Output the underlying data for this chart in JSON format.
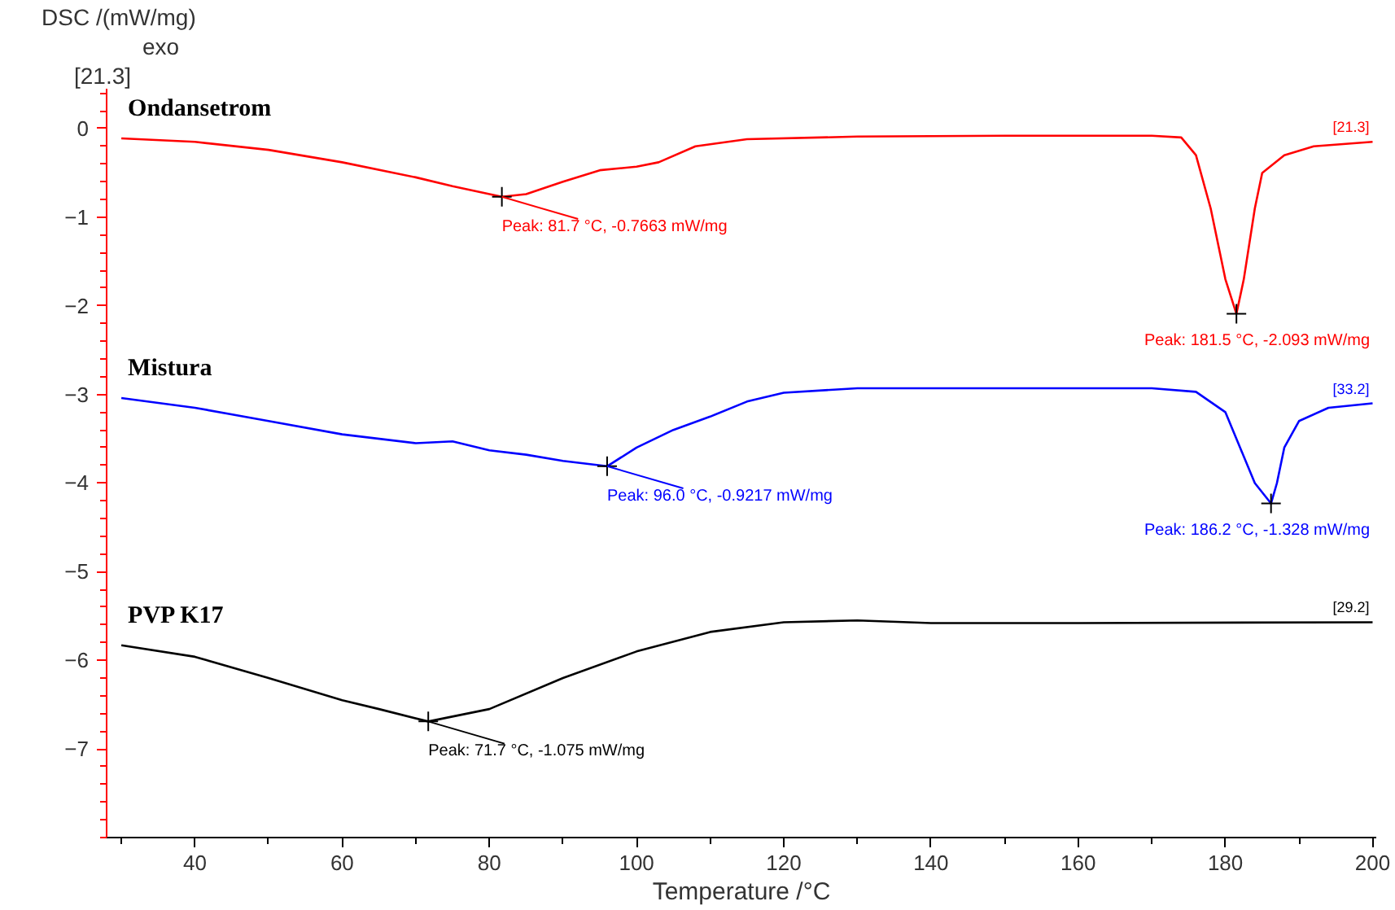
{
  "chart_data": {
    "type": "line",
    "xlabel": "Temperature /°C",
    "ylabel": "DSC /(mW/mg)",
    "xlim": [
      28,
      200.5
    ],
    "ylim": [
      -8,
      0.45
    ],
    "xticks": [
      40,
      60,
      80,
      100,
      120,
      140,
      160,
      180,
      200
    ],
    "yticks": [
      0,
      -1,
      -2,
      -3,
      -4,
      -5,
      -6,
      -7
    ],
    "grid": false,
    "marker": "none",
    "line_style": "solid",
    "series": [
      {
        "name": "Ondansetrom",
        "color": "#ff0000",
        "x": [
          30,
          40,
          50,
          60,
          70,
          75,
          81.7,
          85,
          90,
          95,
          100,
          103,
          108,
          115,
          130,
          150,
          170,
          174,
          176,
          178,
          180,
          181.5,
          182.5,
          184,
          185,
          188,
          192,
          200
        ],
        "values": [
          -0.11,
          -0.15,
          -0.24,
          -0.38,
          -0.55,
          -0.65,
          -0.77,
          -0.74,
          -0.6,
          -0.47,
          -0.43,
          -0.38,
          -0.2,
          -0.12,
          -0.09,
          -0.08,
          -0.08,
          -0.1,
          -0.3,
          -0.9,
          -1.7,
          -2.09,
          -1.7,
          -0.9,
          -0.5,
          -0.3,
          -0.2,
          -0.15
        ]
      },
      {
        "name": "Mistura",
        "color": "#0000ff",
        "x": [
          30,
          40,
          50,
          60,
          70,
          75,
          80,
          85,
          90,
          96,
          100,
          105,
          110,
          115,
          120,
          130,
          150,
          170,
          176,
          180,
          182,
          184,
          186.2,
          187,
          188,
          190,
          194,
          200
        ],
        "values": [
          -3.04,
          -3.15,
          -3.3,
          -3.45,
          -3.55,
          -3.53,
          -3.63,
          -3.68,
          -3.75,
          -3.81,
          -3.6,
          -3.4,
          -3.25,
          -3.08,
          -2.98,
          -2.93,
          -2.93,
          -2.93,
          -2.97,
          -3.2,
          -3.6,
          -4.0,
          -4.23,
          -4.0,
          -3.6,
          -3.3,
          -3.15,
          -3.1
        ]
      },
      {
        "name": "PVP K17",
        "color": "#000000",
        "x": [
          30,
          40,
          50,
          60,
          65,
          71.7,
          80,
          90,
          100,
          110,
          120,
          130,
          140,
          160,
          200
        ],
        "values": [
          -5.83,
          -5.96,
          -6.2,
          -6.45,
          -6.55,
          -6.69,
          -6.55,
          -6.2,
          -5.9,
          -5.68,
          -5.57,
          -5.55,
          -5.58,
          -5.58,
          -5.57
        ]
      }
    ],
    "annotations": [
      "[21.3]",
      "exo",
      {
        "text": "Peak: 81.7 °C, -0.7663 mW/mg",
        "x": 81.7,
        "y": -0.77
      },
      {
        "text": "Peak: 181.5 °C, -2.093 mW/mg",
        "x": 181.5,
        "y": -2.09
      },
      {
        "text": "Peak: 96.0 °C, -0.9217 mW/mg",
        "x": 96,
        "y": -3.81
      },
      {
        "text": "Peak: 186.2 °C, -1.328 mW/mg",
        "x": 186.2,
        "y": -4.23
      },
      {
        "text": "Peak: 71.7 °C, -1.075 mW/mg",
        "x": 71.7,
        "y": -6.69
      },
      {
        "text": "[21.3]",
        "x": 200,
        "y": -0.15
      },
      {
        "text": "[33.2]",
        "x": 200,
        "y": -3.1
      },
      {
        "text": "[29.2]",
        "x": 200,
        "y": -5.57
      }
    ]
  }
}
